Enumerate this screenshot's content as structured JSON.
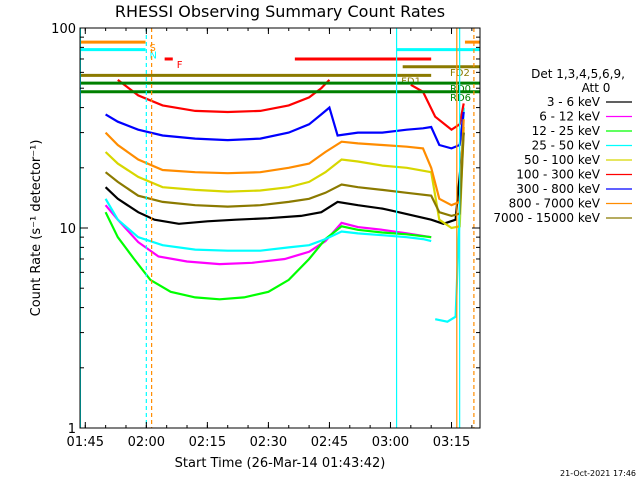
{
  "chart_data": {
    "type": "line",
    "title": "RHESSI Observing Summary Count Rates",
    "xlabel": "Start Time (26-Mar-14 01:43:42)",
    "ylabel": "Count Rate (s⁻¹ detector⁻¹)",
    "yscale": "log",
    "ylim": [
      1,
      100
    ],
    "xlim_minutes": [
      103.7,
      202.0
    ],
    "x_ticks": [
      {
        "label": "01:45",
        "min": 105
      },
      {
        "label": "02:00",
        "min": 120
      },
      {
        "label": "02:15",
        "min": 135
      },
      {
        "label": "02:30",
        "min": 150
      },
      {
        "label": "02:45",
        "min": 165
      },
      {
        "label": "03:00",
        "min": 180
      },
      {
        "label": "03:15",
        "min": 195
      }
    ],
    "y_ticks": [
      {
        "label": "1",
        "value": 1
      },
      {
        "label": "10",
        "value": 10
      },
      {
        "label": "100",
        "value": 100
      }
    ],
    "legend": {
      "header": [
        "Det 1,3,4,5,6,9,",
        "Att 0"
      ],
      "placement": "right"
    },
    "series": [
      {
        "name": "3 - 6 keV",
        "color": "#000000",
        "segments": [
          [
            [
              110,
              16
            ],
            [
              113,
              14
            ],
            [
              118,
              12
            ],
            [
              122,
              11
            ],
            [
              128,
              10.5
            ],
            [
              135,
              10.8
            ],
            [
              142,
              11
            ],
            [
              150,
              11.2
            ],
            [
              158,
              11.5
            ],
            [
              163,
              12
            ],
            [
              167,
              13.5
            ],
            [
              172,
              13
            ],
            [
              178,
              12.5
            ],
            [
              182,
              12
            ],
            [
              186,
              11.5
            ],
            [
              190,
              11
            ],
            [
              193,
              10.5
            ],
            [
              196,
              11
            ],
            [
              198,
              30
            ]
          ]
        ]
      },
      {
        "name": "6 - 12 keV",
        "color": "#ff00ff",
        "segments": [
          [
            [
              110,
              13
            ],
            [
              113,
              11
            ],
            [
              118,
              8.5
            ],
            [
              123,
              7.2
            ],
            [
              130,
              6.8
            ],
            [
              138,
              6.6
            ],
            [
              146,
              6.7
            ],
            [
              154,
              7
            ],
            [
              160,
              7.6
            ],
            [
              164,
              8.6
            ],
            [
              168,
              10.6
            ],
            [
              172,
              10.1
            ],
            [
              178,
              9.8
            ],
            [
              184,
              9.4
            ],
            [
              190,
              9
            ]
          ]
        ]
      },
      {
        "name": "12 - 25 keV",
        "color": "#00ff00",
        "segments": [
          [
            [
              110,
              12
            ],
            [
              113,
              9
            ],
            [
              117,
              7
            ],
            [
              121,
              5.5
            ],
            [
              126,
              4.8
            ],
            [
              132,
              4.5
            ],
            [
              138,
              4.4
            ],
            [
              144,
              4.5
            ],
            [
              150,
              4.8
            ],
            [
              155,
              5.5
            ],
            [
              160,
              7
            ],
            [
              164,
              8.8
            ],
            [
              168,
              10.2
            ],
            [
              172,
              9.8
            ],
            [
              178,
              9.5
            ],
            [
              184,
              9.3
            ],
            [
              190,
              9
            ]
          ]
        ]
      },
      {
        "name": "25 - 50 keV",
        "color": "#00ffff",
        "segments": [
          [
            [
              110,
              14
            ],
            [
              113,
              11
            ],
            [
              118,
              9
            ],
            [
              124,
              8.2
            ],
            [
              132,
              7.8
            ],
            [
              140,
              7.7
            ],
            [
              148,
              7.7
            ],
            [
              155,
              8
            ],
            [
              160,
              8.2
            ],
            [
              164,
              8.8
            ],
            [
              168,
              9.6
            ],
            [
              172,
              9.4
            ],
            [
              178,
              9.2
            ],
            [
              184,
              9
            ],
            [
              188,
              8.8
            ],
            [
              190,
              8.6
            ]
          ],
          [
            [
              191,
              3.5
            ],
            [
              194,
              3.4
            ],
            [
              196,
              3.6
            ],
            [
              198,
              40
            ]
          ]
        ]
      },
      {
        "name": "50 - 100 keV",
        "color": "#d7d700",
        "segments": [
          [
            [
              110,
              24
            ],
            [
              113,
              21
            ],
            [
              118,
              18
            ],
            [
              124,
              16
            ],
            [
              132,
              15.5
            ],
            [
              140,
              15.2
            ],
            [
              148,
              15.4
            ],
            [
              155,
              16
            ],
            [
              160,
              17
            ],
            [
              164,
              19
            ],
            [
              168,
              22
            ],
            [
              172,
              21.5
            ],
            [
              178,
              20.5
            ],
            [
              184,
              20
            ],
            [
              190,
              19
            ],
            [
              192,
              11
            ],
            [
              195,
              10
            ],
            [
              197,
              10.2
            ],
            [
              198,
              32
            ]
          ]
        ]
      },
      {
        "name": "100 - 300 keV",
        "color": "#ff0000",
        "segments": [
          [
            [
              113,
              55
            ],
            [
              118,
              46
            ],
            [
              124,
              41
            ],
            [
              132,
              38.5
            ],
            [
              140,
              38
            ],
            [
              148,
              38.5
            ],
            [
              155,
              41
            ],
            [
              160,
              45
            ],
            [
              163,
              50
            ],
            [
              165,
              55
            ]
          ],
          [
            [
              185,
              52
            ],
            [
              188,
              48
            ],
            [
              191,
              36
            ],
            [
              195,
              31
            ],
            [
              197,
              33
            ],
            [
              198,
              42
            ]
          ]
        ]
      },
      {
        "name": "300 - 800 keV",
        "color": "#0000ff",
        "segments": [
          [
            [
              110,
              37
            ],
            [
              113,
              34
            ],
            [
              118,
              31
            ],
            [
              124,
              29
            ],
            [
              132,
              28
            ],
            [
              140,
              27.5
            ],
            [
              148,
              28
            ],
            [
              155,
              30
            ],
            [
              160,
              33
            ],
            [
              163,
              37
            ],
            [
              165,
              40
            ],
            [
              167,
              29
            ],
            [
              172,
              30
            ],
            [
              178,
              30
            ],
            [
              184,
              31
            ],
            [
              188,
              31.5
            ],
            [
              190,
              32
            ],
            [
              192,
              26
            ],
            [
              195,
              25
            ],
            [
              197,
              26
            ],
            [
              198,
              38
            ]
          ]
        ]
      },
      {
        "name": "800 - 7000 keV",
        "color": "#ff8c00",
        "segments": [
          [
            [
              110,
              30
            ],
            [
              113,
              26
            ],
            [
              118,
              22
            ],
            [
              124,
              19.5
            ],
            [
              132,
              19
            ],
            [
              140,
              18.8
            ],
            [
              148,
              19
            ],
            [
              155,
              20
            ],
            [
              160,
              21
            ],
            [
              164,
              24
            ],
            [
              168,
              27
            ],
            [
              172,
              26.5
            ],
            [
              178,
              26
            ],
            [
              184,
              25.5
            ],
            [
              188,
              25
            ],
            [
              190,
              20
            ],
            [
              192,
              14
            ],
            [
              195,
              13
            ],
            [
              197,
              13.5
            ],
            [
              198,
              35
            ]
          ]
        ]
      },
      {
        "name": "7000 - 15000 keV",
        "color": "#8b7a00",
        "segments": [
          [
            [
              110,
              19
            ],
            [
              113,
              17
            ],
            [
              118,
              14.5
            ],
            [
              124,
              13.5
            ],
            [
              132,
              13
            ],
            [
              140,
              12.8
            ],
            [
              148,
              13
            ],
            [
              155,
              13.5
            ],
            [
              160,
              14
            ],
            [
              164,
              15
            ],
            [
              168,
              16.5
            ],
            [
              172,
              16
            ],
            [
              178,
              15.5
            ],
            [
              184,
              15
            ],
            [
              190,
              14.5
            ],
            [
              192,
              12
            ],
            [
              195,
              11.5
            ],
            [
              197,
              11.8
            ],
            [
              198,
              30
            ]
          ]
        ]
      }
    ],
    "flags": [
      {
        "label": "S",
        "color": "#ff8c00",
        "ranges": [
          [
            103.7,
            119.8
          ],
          [
            198.3,
            202
          ]
        ],
        "y_value": 85
      },
      {
        "label": "N",
        "color": "#00ffff",
        "ranges": [
          [
            103.7,
            119.8
          ],
          [
            181.5,
            202
          ]
        ],
        "y_value": 78
      },
      {
        "label": "F",
        "color": "#ff0000",
        "ranges": [
          [
            124.5,
            126.5
          ],
          [
            156.5,
            190
          ]
        ],
        "y_value": 70
      },
      {
        "label": "FD1",
        "color": "#8b7a00",
        "ranges": [
          [
            103.7,
            190
          ]
        ],
        "y_value": 58
      },
      {
        "label": "FD2",
        "color": "#8b7a00",
        "ranges": [
          [
            183,
            202
          ]
        ],
        "y_value": 64
      },
      {
        "label": "RD0",
        "color": "#008000",
        "ranges": [
          [
            103.7,
            202
          ]
        ],
        "y_value": 53
      },
      {
        "label": "RD6",
        "color": "#008000",
        "ranges": [
          [
            103.7,
            202
          ]
        ],
        "y_value": 48
      }
    ],
    "vertical_markers": [
      {
        "minute": 120.0,
        "color": "#00ffff",
        "style": "dashed"
      },
      {
        "minute": 121.3,
        "color": "#ff8c00",
        "style": "dashed"
      },
      {
        "minute": 181.5,
        "color": "#00ffff",
        "style": "solid"
      },
      {
        "minute": 196.3,
        "color": "#ff8c00",
        "style": "solid"
      },
      {
        "minute": 197.0,
        "color": "#00ffff",
        "style": "solid"
      },
      {
        "minute": 200.5,
        "color": "#ff8c00",
        "style": "dashed"
      },
      {
        "minute": 103.8,
        "color": "#00ffff",
        "style": "solid"
      }
    ]
  },
  "footer": {
    "timestamp": "21-Oct-2021 17:46"
  }
}
